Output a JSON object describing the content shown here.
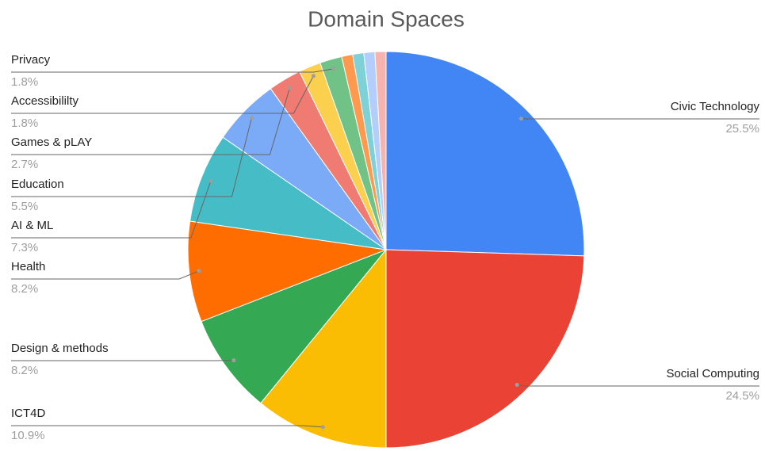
{
  "chart_data": {
    "type": "pie",
    "title": "Domain Spaces",
    "categories": [
      "Civic Technology",
      "Social Computing",
      "ICT4D",
      "Design & methods",
      "Health",
      "AI & ML",
      "Education",
      "Games & pLAY",
      "Accessibililty",
      "Privacy",
      null,
      null,
      null,
      null
    ],
    "values": [
      25.5,
      24.5,
      10.9,
      8.2,
      8.2,
      7.3,
      5.5,
      2.7,
      1.8,
      1.8,
      0.9,
      0.9,
      0.9,
      0.9
    ],
    "value_labels": [
      "25.5%",
      "24.5%",
      "10.9%",
      "8.2%",
      "8.2%",
      "7.3%",
      "5.5%",
      "2.7%",
      "1.8%",
      "1.8%",
      null,
      null,
      null,
      null
    ],
    "colors": [
      "#4285f4",
      "#ea4335",
      "#fbbc04",
      "#34a853",
      "#ff6d01",
      "#46bdc6",
      "#7baaf7",
      "#f07b72",
      "#fcd04f",
      "#71c287",
      "#ff994d",
      "#7ed1d7",
      "#b3cefb",
      "#f7b4ae"
    ]
  }
}
